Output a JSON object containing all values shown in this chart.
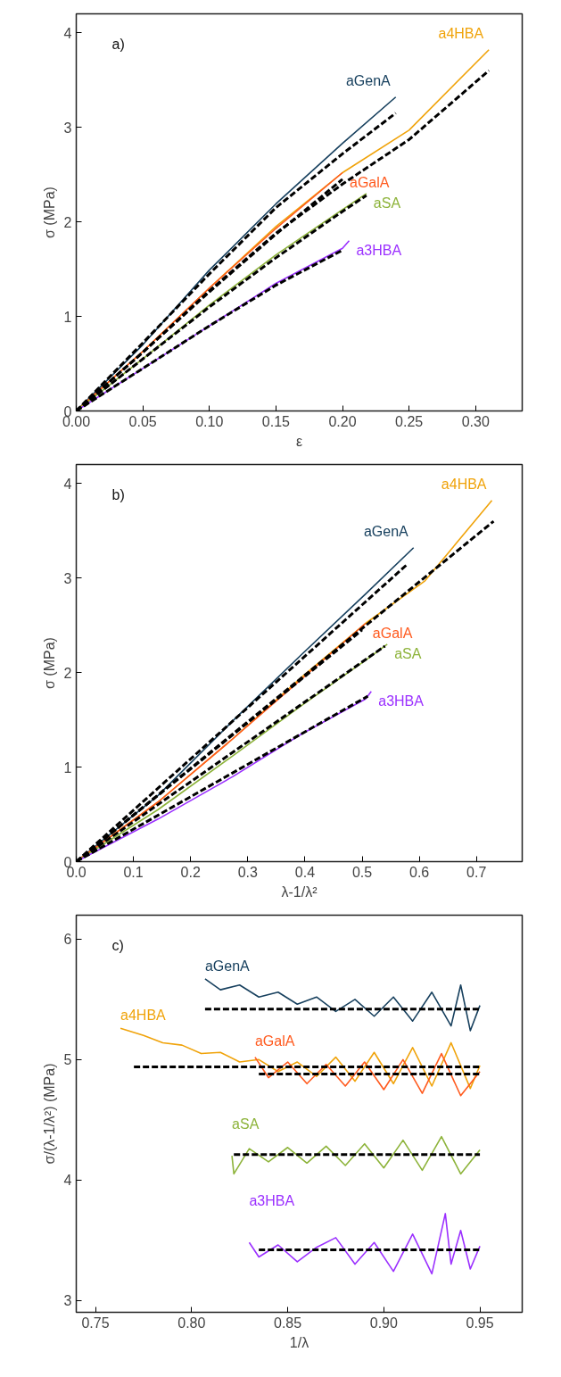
{
  "chart_data": [
    {
      "type": "line",
      "annotations": [
        "a)"
      ],
      "xlabel": "ε",
      "ylabel": "σ (MPa)",
      "xlim": [
        0,
        0.335
      ],
      "ylim": [
        0,
        4.2
      ],
      "xticks": [
        {
          "value": 0,
          "label": "0.00"
        },
        {
          "value": 0.05,
          "label": "0.05"
        },
        {
          "value": 0.1,
          "label": "0.10"
        },
        {
          "value": 0.15,
          "label": "0.15"
        },
        {
          "value": 0.2,
          "label": "0.20"
        },
        {
          "value": 0.25,
          "label": "0.25"
        },
        {
          "value": 0.3,
          "label": "0.30"
        }
      ],
      "yticks": [
        0,
        1,
        2,
        3,
        4
      ],
      "grid": false,
      "series": [
        {
          "name": "aGenA",
          "color": "#17405e",
          "x": [
            0,
            0.05,
            0.1,
            0.15,
            0.2,
            0.24
          ],
          "values": [
            0,
            0.7,
            1.49,
            2.19,
            2.83,
            3.32
          ]
        },
        {
          "name": "a4HBA",
          "color": "#f0a30a",
          "x": [
            0,
            0.05,
            0.1,
            0.15,
            0.2,
            0.25,
            0.31
          ],
          "values": [
            0,
            0.63,
            1.3,
            1.95,
            2.52,
            2.97,
            3.82
          ]
        },
        {
          "name": "aGalA",
          "color": "#ff5a1e",
          "x": [
            0,
            0.05,
            0.1,
            0.15,
            0.2
          ],
          "values": [
            0,
            0.63,
            1.3,
            1.93,
            2.52
          ]
        },
        {
          "name": "aSA",
          "color": "#8db33a",
          "x": [
            0,
            0.05,
            0.1,
            0.15,
            0.2,
            0.218
          ],
          "values": [
            0,
            0.55,
            1.12,
            1.65,
            2.13,
            2.3
          ]
        },
        {
          "name": "a3HBA",
          "color": "#9b30ff",
          "x": [
            0,
            0.05,
            0.1,
            0.15,
            0.2,
            0.205
          ],
          "values": [
            0,
            0.45,
            0.9,
            1.35,
            1.72,
            1.8
          ]
        },
        {
          "type": "line",
          "color": "#000000",
          "line_style": "dashed",
          "x": [
            0,
            0.05,
            0.1,
            0.15,
            0.2,
            0.24
          ],
          "values": [
            0,
            0.72,
            1.45,
            2.15,
            2.72,
            3.15
          ]
        },
        {
          "type": "line",
          "color": "#000000",
          "line_style": "dashed",
          "x": [
            0,
            0.05,
            0.1,
            0.15,
            0.2,
            0.25,
            0.31
          ],
          "values": [
            0,
            0.62,
            1.27,
            1.88,
            2.4,
            2.87,
            3.6
          ]
        },
        {
          "type": "line",
          "color": "#000000",
          "line_style": "dashed",
          "x": [
            0,
            0.05,
            0.1,
            0.15,
            0.2
          ],
          "values": [
            0,
            0.62,
            1.26,
            1.87,
            2.45
          ]
        },
        {
          "type": "line",
          "color": "#000000",
          "line_style": "dashed",
          "x": [
            0,
            0.05,
            0.1,
            0.15,
            0.2,
            0.218
          ],
          "values": [
            0,
            0.55,
            1.1,
            1.62,
            2.11,
            2.28
          ]
        },
        {
          "type": "line",
          "color": "#000000",
          "line_style": "dashed",
          "x": [
            0,
            0.05,
            0.1,
            0.15,
            0.2
          ],
          "values": [
            0,
            0.45,
            0.9,
            1.33,
            1.7
          ]
        }
      ]
    },
    {
      "type": "line",
      "annotations": [
        "b)"
      ],
      "xlabel": "λ-1/λ²",
      "ylabel": "σ (MPa)",
      "xlim": [
        0,
        0.78
      ],
      "ylim": [
        0,
        4.2
      ],
      "xticks": [
        {
          "value": 0,
          "label": "0.0"
        },
        0.1,
        0.2,
        0.3,
        0.4,
        0.5,
        0.6,
        0.7
      ],
      "yticks": [
        0,
        1,
        2,
        3,
        4
      ],
      "grid": false,
      "series": [
        {
          "name": "aGenA",
          "color": "#17405e",
          "x": [
            0,
            0.143,
            0.274,
            0.394,
            0.506,
            0.59
          ],
          "values": [
            0,
            0.7,
            1.49,
            2.19,
            2.83,
            3.32
          ]
        },
        {
          "name": "a4HBA",
          "color": "#f0a30a",
          "x": [
            0,
            0.143,
            0.274,
            0.394,
            0.506,
            0.61,
            0.727
          ],
          "values": [
            0,
            0.63,
            1.3,
            1.95,
            2.52,
            2.97,
            3.82
          ]
        },
        {
          "name": "aGalA",
          "color": "#ff5a1e",
          "x": [
            0,
            0.143,
            0.274,
            0.394,
            0.506
          ],
          "values": [
            0,
            0.63,
            1.3,
            1.93,
            2.52
          ]
        },
        {
          "name": "aSA",
          "color": "#8db33a",
          "x": [
            0,
            0.143,
            0.274,
            0.394,
            0.506,
            0.544
          ],
          "values": [
            0,
            0.55,
            1.12,
            1.65,
            2.13,
            2.3
          ]
        },
        {
          "name": "a3HBA",
          "color": "#9b30ff",
          "x": [
            0,
            0.143,
            0.274,
            0.394,
            0.506,
            0.516
          ],
          "values": [
            0,
            0.45,
            0.9,
            1.35,
            1.72,
            1.8
          ]
        },
        {
          "type": "line",
          "color": "#000000",
          "line_style": "dashed",
          "x": [
            0,
            0.58
          ],
          "values": [
            0,
            3.15
          ]
        },
        {
          "type": "line",
          "color": "#000000",
          "line_style": "dashed",
          "x": [
            0,
            0.73
          ],
          "values": [
            0,
            3.6
          ]
        },
        {
          "type": "line",
          "color": "#000000",
          "line_style": "dashed",
          "x": [
            0,
            0.5
          ],
          "values": [
            0,
            2.45
          ]
        },
        {
          "type": "line",
          "color": "#000000",
          "line_style": "dashed",
          "x": [
            0,
            0.54
          ],
          "values": [
            0,
            2.28
          ]
        },
        {
          "type": "line",
          "color": "#000000",
          "line_style": "dashed",
          "x": [
            0,
            0.51
          ],
          "values": [
            0,
            1.75
          ]
        }
      ]
    },
    {
      "type": "line",
      "annotations": [
        "c)"
      ],
      "xlabel": "1/λ",
      "ylabel": "σ/(λ-1/λ²) (MPa)",
      "xlim": [
        0.74,
        0.972
      ],
      "ylim": [
        2.9,
        6.2
      ],
      "xticks": [
        {
          "value": 0.75,
          "label": "0.75"
        },
        {
          "value": 0.8,
          "label": "0.80"
        },
        {
          "value": 0.85,
          "label": "0.85"
        },
        {
          "value": 0.9,
          "label": "0.90"
        },
        {
          "value": 0.95,
          "label": "0.95"
        }
      ],
      "yticks": [
        3,
        4,
        5,
        6
      ],
      "grid": false,
      "series": [
        {
          "name": "aGenA",
          "color": "#17405e",
          "x": [
            0.807,
            0.815,
            0.825,
            0.835,
            0.845,
            0.855,
            0.865,
            0.875,
            0.885,
            0.895,
            0.905,
            0.915,
            0.925,
            0.935,
            0.94,
            0.945,
            0.95
          ],
          "values": [
            5.67,
            5.58,
            5.62,
            5.52,
            5.56,
            5.46,
            5.52,
            5.4,
            5.5,
            5.36,
            5.52,
            5.32,
            5.56,
            5.28,
            5.62,
            5.24,
            5.45
          ]
        },
        {
          "name": "a4HBA",
          "color": "#f0a30a",
          "x": [
            0.763,
            0.775,
            0.785,
            0.795,
            0.805,
            0.815,
            0.825,
            0.835,
            0.845,
            0.855,
            0.865,
            0.875,
            0.885,
            0.895,
            0.905,
            0.915,
            0.925,
            0.935,
            0.945,
            0.95
          ],
          "values": [
            5.26,
            5.2,
            5.14,
            5.12,
            5.05,
            5.06,
            4.98,
            5.0,
            4.9,
            4.98,
            4.86,
            5.02,
            4.82,
            5.06,
            4.8,
            5.1,
            4.78,
            5.14,
            4.76,
            4.95
          ]
        },
        {
          "name": "aGalA",
          "color": "#ff5a1e",
          "x": [
            0.833,
            0.84,
            0.85,
            0.86,
            0.87,
            0.88,
            0.89,
            0.9,
            0.91,
            0.92,
            0.93,
            0.94,
            0.95
          ],
          "values": [
            5.02,
            4.85,
            4.98,
            4.8,
            4.96,
            4.78,
            4.98,
            4.75,
            5.0,
            4.72,
            5.05,
            4.7,
            4.9
          ]
        },
        {
          "name": "aSA",
          "color": "#8db33a",
          "x": [
            0.821,
            0.822,
            0.83,
            0.84,
            0.85,
            0.86,
            0.87,
            0.88,
            0.89,
            0.9,
            0.91,
            0.92,
            0.93,
            0.94,
            0.95
          ],
          "values": [
            4.2,
            4.05,
            4.26,
            4.15,
            4.27,
            4.14,
            4.28,
            4.12,
            4.3,
            4.1,
            4.33,
            4.08,
            4.36,
            4.05,
            4.25
          ]
        },
        {
          "name": "a3HBA",
          "color": "#9b30ff",
          "x": [
            0.83,
            0.835,
            0.845,
            0.855,
            0.865,
            0.875,
            0.885,
            0.895,
            0.905,
            0.915,
            0.925,
            0.932,
            0.935,
            0.94,
            0.945,
            0.95
          ],
          "values": [
            3.48,
            3.36,
            3.46,
            3.32,
            3.44,
            3.52,
            3.3,
            3.48,
            3.24,
            3.55,
            3.22,
            3.72,
            3.3,
            3.58,
            3.26,
            3.45
          ]
        },
        {
          "type": "line",
          "color": "#000000",
          "line_style": "dashed",
          "x": [
            0.807,
            0.95
          ],
          "values": [
            5.42,
            5.42
          ]
        },
        {
          "type": "line",
          "color": "#000000",
          "line_style": "dashed",
          "x": [
            0.77,
            0.95
          ],
          "values": [
            4.94,
            4.94
          ]
        },
        {
          "type": "line",
          "color": "#000000",
          "line_style": "dashed",
          "x": [
            0.835,
            0.95
          ],
          "values": [
            4.88,
            4.88
          ]
        },
        {
          "type": "line",
          "color": "#000000",
          "line_style": "dashed",
          "x": [
            0.822,
            0.95
          ],
          "values": [
            4.21,
            4.21
          ]
        },
        {
          "type": "line",
          "color": "#000000",
          "line_style": "dashed",
          "x": [
            0.835,
            0.95
          ],
          "values": [
            3.42,
            3.42
          ]
        }
      ]
    }
  ]
}
